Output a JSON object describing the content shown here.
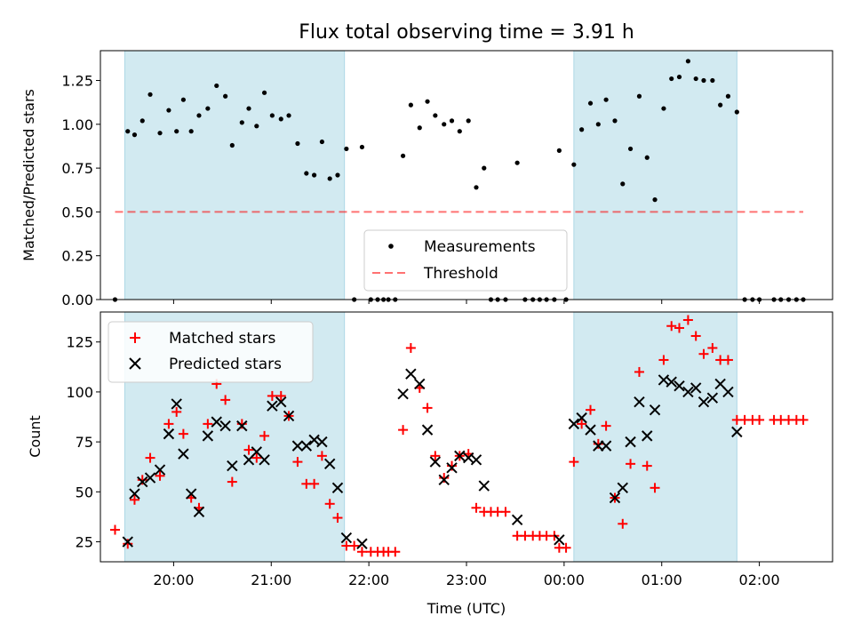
{
  "title": "Flux total observing time = 3.91 h",
  "colors": {
    "shade": "#add8e6",
    "measurement": "#000000",
    "threshold": "#ff0000",
    "matched": "#ff0000",
    "predicted": "#000000"
  },
  "x_axis": {
    "label": "Time (UTC)",
    "range_hours": [
      19.25,
      26.75
    ],
    "ticks": [
      {
        "hour": 20,
        "label": "20:00"
      },
      {
        "hour": 21,
        "label": "21:00"
      },
      {
        "hour": 22,
        "label": "22:00"
      },
      {
        "hour": 23,
        "label": "23:00"
      },
      {
        "hour": 24,
        "label": "00:00"
      },
      {
        "hour": 25,
        "label": "01:00"
      },
      {
        "hour": 26,
        "label": "02:00"
      }
    ]
  },
  "shaded_intervals_hours": [
    [
      19.5,
      21.75
    ],
    [
      24.1,
      25.77
    ]
  ],
  "chart_data": [
    {
      "type": "scatter",
      "ylabel": "Matched/Predicted stars",
      "ylim": [
        0,
        1.42
      ],
      "yticks": [
        {
          "value": 0.0,
          "label": "0.00"
        },
        {
          "value": 0.25,
          "label": "0.25"
        },
        {
          "value": 0.5,
          "label": "0.50"
        },
        {
          "value": 0.75,
          "label": "0.75"
        },
        {
          "value": 1.0,
          "label": "1.00"
        },
        {
          "value": 1.25,
          "label": "1.25"
        }
      ],
      "legend": {
        "placement": "lower center",
        "entries": [
          "Measurements",
          "Threshold"
        ]
      },
      "threshold": {
        "name": "Threshold",
        "value": 0.5,
        "x_range_hours": [
          19.4,
          26.45
        ]
      },
      "series": [
        {
          "name": "Measurements",
          "marker": "dot",
          "points": [
            [
              19.4,
              0.0
            ],
            [
              19.53,
              0.96
            ],
            [
              19.6,
              0.94
            ],
            [
              19.68,
              1.02
            ],
            [
              19.76,
              1.17
            ],
            [
              19.86,
              0.95
            ],
            [
              19.95,
              1.08
            ],
            [
              20.03,
              0.96
            ],
            [
              20.1,
              1.14
            ],
            [
              20.18,
              0.96
            ],
            [
              20.26,
              1.05
            ],
            [
              20.35,
              1.09
            ],
            [
              20.44,
              1.22
            ],
            [
              20.53,
              1.16
            ],
            [
              20.6,
              0.88
            ],
            [
              20.7,
              1.01
            ],
            [
              20.77,
              1.09
            ],
            [
              20.85,
              0.99
            ],
            [
              20.93,
              1.18
            ],
            [
              21.01,
              1.05
            ],
            [
              21.1,
              1.03
            ],
            [
              21.18,
              1.05
            ],
            [
              21.27,
              0.89
            ],
            [
              21.36,
              0.72
            ],
            [
              21.44,
              0.71
            ],
            [
              21.52,
              0.9
            ],
            [
              21.6,
              0.69
            ],
            [
              21.68,
              0.71
            ],
            [
              21.77,
              0.86
            ],
            [
              21.85,
              0.0
            ],
            [
              21.93,
              0.87
            ],
            [
              22.02,
              0.0
            ],
            [
              22.09,
              0.0
            ],
            [
              22.15,
              0.0
            ],
            [
              22.2,
              0.0
            ],
            [
              22.27,
              0.0
            ],
            [
              22.35,
              0.82
            ],
            [
              22.43,
              1.11
            ],
            [
              22.52,
              0.98
            ],
            [
              22.6,
              1.13
            ],
            [
              22.68,
              1.05
            ],
            [
              22.77,
              1.0
            ],
            [
              22.85,
              1.02
            ],
            [
              22.93,
              0.96
            ],
            [
              23.02,
              1.02
            ],
            [
              23.1,
              0.64
            ],
            [
              23.18,
              0.75
            ],
            [
              23.25,
              0.0
            ],
            [
              23.32,
              0.0
            ],
            [
              23.4,
              0.0
            ],
            [
              23.52,
              0.78
            ],
            [
              23.6,
              0.0
            ],
            [
              23.68,
              0.0
            ],
            [
              23.75,
              0.0
            ],
            [
              23.82,
              0.0
            ],
            [
              23.9,
              0.0
            ],
            [
              23.95,
              0.85
            ],
            [
              24.02,
              0.0
            ],
            [
              24.1,
              0.77
            ],
            [
              24.18,
              0.97
            ],
            [
              24.27,
              1.12
            ],
            [
              24.35,
              1.0
            ],
            [
              24.43,
              1.14
            ],
            [
              24.52,
              1.02
            ],
            [
              24.6,
              0.66
            ],
            [
              24.68,
              0.86
            ],
            [
              24.77,
              1.16
            ],
            [
              24.85,
              0.81
            ],
            [
              24.93,
              0.57
            ],
            [
              25.02,
              1.09
            ],
            [
              25.1,
              1.26
            ],
            [
              25.18,
              1.27
            ],
            [
              25.27,
              1.36
            ],
            [
              25.35,
              1.26
            ],
            [
              25.43,
              1.25
            ],
            [
              25.52,
              1.25
            ],
            [
              25.6,
              1.11
            ],
            [
              25.68,
              1.16
            ],
            [
              25.77,
              1.07
            ],
            [
              25.85,
              0.0
            ],
            [
              25.93,
              0.0
            ],
            [
              26.0,
              0.0
            ],
            [
              26.15,
              0.0
            ],
            [
              26.22,
              0.0
            ],
            [
              26.3,
              0.0
            ],
            [
              26.38,
              0.0
            ],
            [
              26.45,
              0.0
            ]
          ]
        }
      ]
    },
    {
      "type": "scatter",
      "ylabel": "Count",
      "ylim": [
        15,
        140
      ],
      "yticks": [
        {
          "value": 25,
          "label": "25"
        },
        {
          "value": 50,
          "label": "50"
        },
        {
          "value": 75,
          "label": "75"
        },
        {
          "value": 100,
          "label": "100"
        },
        {
          "value": 125,
          "label": "125"
        }
      ],
      "legend": {
        "placement": "upper left",
        "entries": [
          "Matched stars",
          "Predicted stars"
        ]
      },
      "series": [
        {
          "name": "Matched stars",
          "marker": "plus",
          "points": [
            [
              19.4,
              31
            ],
            [
              19.53,
              24
            ],
            [
              19.6,
              46
            ],
            [
              19.68,
              56
            ],
            [
              19.76,
              67
            ],
            [
              19.86,
              58
            ],
            [
              19.95,
              84
            ],
            [
              20.03,
              90
            ],
            [
              20.1,
              79
            ],
            [
              20.18,
              47
            ],
            [
              20.26,
              42
            ],
            [
              20.35,
              84
            ],
            [
              20.44,
              104
            ],
            [
              20.53,
              96
            ],
            [
              20.6,
              55
            ],
            [
              20.7,
              84
            ],
            [
              20.77,
              71
            ],
            [
              20.85,
              67
            ],
            [
              20.93,
              78
            ],
            [
              21.01,
              98
            ],
            [
              21.1,
              98
            ],
            [
              21.18,
              88
            ],
            [
              21.27,
              65
            ],
            [
              21.36,
              54
            ],
            [
              21.44,
              54
            ],
            [
              21.52,
              68
            ],
            [
              21.6,
              44
            ],
            [
              21.68,
              37
            ],
            [
              21.77,
              23
            ],
            [
              21.85,
              23
            ],
            [
              21.93,
              20
            ],
            [
              22.02,
              20
            ],
            [
              22.09,
              20
            ],
            [
              22.15,
              20
            ],
            [
              22.2,
              20
            ],
            [
              22.27,
              20
            ],
            [
              22.35,
              81
            ],
            [
              22.43,
              122
            ],
            [
              22.52,
              102
            ],
            [
              22.6,
              92
            ],
            [
              22.68,
              68
            ],
            [
              22.77,
              57
            ],
            [
              22.85,
              63
            ],
            [
              22.93,
              68
            ],
            [
              23.02,
              69
            ],
            [
              23.1,
              42
            ],
            [
              23.18,
              40
            ],
            [
              23.25,
              40
            ],
            [
              23.32,
              40
            ],
            [
              23.4,
              40
            ],
            [
              23.52,
              28
            ],
            [
              23.6,
              28
            ],
            [
              23.68,
              28
            ],
            [
              23.75,
              28
            ],
            [
              23.82,
              28
            ],
            [
              23.9,
              28
            ],
            [
              23.95,
              22
            ],
            [
              24.02,
              22
            ],
            [
              24.1,
              65
            ],
            [
              24.18,
              84
            ],
            [
              24.27,
              91
            ],
            [
              24.35,
              74
            ],
            [
              24.43,
              83
            ],
            [
              24.52,
              47
            ],
            [
              24.6,
              34
            ],
            [
              24.68,
              64
            ],
            [
              24.77,
              110
            ],
            [
              24.85,
              63
            ],
            [
              24.93,
              52
            ],
            [
              25.02,
              116
            ],
            [
              25.1,
              133
            ],
            [
              25.18,
              132
            ],
            [
              25.27,
              136
            ],
            [
              25.35,
              128
            ],
            [
              25.43,
              119
            ],
            [
              25.52,
              122
            ],
            [
              25.6,
              116
            ],
            [
              25.68,
              116
            ],
            [
              25.77,
              86
            ],
            [
              25.85,
              86
            ],
            [
              25.93,
              86
            ],
            [
              26.0,
              86
            ],
            [
              26.15,
              86
            ],
            [
              26.22,
              86
            ],
            [
              26.3,
              86
            ],
            [
              26.38,
              86
            ],
            [
              26.45,
              86
            ]
          ]
        },
        {
          "name": "Predicted stars",
          "marker": "x",
          "points": [
            [
              19.53,
              25
            ],
            [
              19.6,
              49
            ],
            [
              19.68,
              55
            ],
            [
              19.76,
              57
            ],
            [
              19.86,
              61
            ],
            [
              19.95,
              79
            ],
            [
              20.03,
              94
            ],
            [
              20.1,
              69
            ],
            [
              20.18,
              49
            ],
            [
              20.26,
              40
            ],
            [
              20.35,
              78
            ],
            [
              20.44,
              85
            ],
            [
              20.53,
              83
            ],
            [
              20.6,
              63
            ],
            [
              20.7,
              83
            ],
            [
              20.77,
              66
            ],
            [
              20.85,
              70
            ],
            [
              20.93,
              66
            ],
            [
              21.01,
              93
            ],
            [
              21.1,
              95
            ],
            [
              21.18,
              88
            ],
            [
              21.27,
              73
            ],
            [
              21.36,
              73
            ],
            [
              21.44,
              76
            ],
            [
              21.52,
              75
            ],
            [
              21.6,
              64
            ],
            [
              21.68,
              52
            ],
            [
              21.77,
              27
            ],
            [
              21.93,
              24
            ],
            [
              22.35,
              99
            ],
            [
              22.43,
              109
            ],
            [
              22.52,
              104
            ],
            [
              22.6,
              81
            ],
            [
              22.68,
              65
            ],
            [
              22.77,
              56
            ],
            [
              22.85,
              62
            ],
            [
              22.93,
              68
            ],
            [
              23.02,
              67
            ],
            [
              23.1,
              66
            ],
            [
              23.18,
              53
            ],
            [
              23.52,
              36
            ],
            [
              23.95,
              26
            ],
            [
              24.1,
              84
            ],
            [
              24.18,
              87
            ],
            [
              24.27,
              81
            ],
            [
              24.35,
              73
            ],
            [
              24.43,
              73
            ],
            [
              24.52,
              47
            ],
            [
              24.6,
              52
            ],
            [
              24.68,
              75
            ],
            [
              24.77,
              95
            ],
            [
              24.85,
              78
            ],
            [
              24.93,
              91
            ],
            [
              25.02,
              106
            ],
            [
              25.1,
              105
            ],
            [
              25.18,
              103
            ],
            [
              25.27,
              100
            ],
            [
              25.35,
              102
            ],
            [
              25.43,
              95
            ],
            [
              25.52,
              97
            ],
            [
              25.6,
              104
            ],
            [
              25.68,
              100
            ],
            [
              25.77,
              80
            ]
          ]
        }
      ]
    }
  ]
}
